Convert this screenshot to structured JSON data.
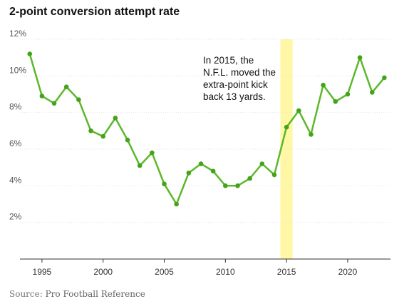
{
  "title": "2-point conversion attempt rate",
  "source": {
    "label": "Source:",
    "text": "Pro Football Reference"
  },
  "colors": {
    "line": "#5cb82a",
    "dot": "#45a31a",
    "highlight": "#fff7a6",
    "grid": "#e6e6e6",
    "axis": "#333333"
  },
  "chart_data": {
    "type": "line",
    "title": "2-point conversion attempt rate",
    "xlabel": "",
    "ylabel": "",
    "xlim": [
      1993.2,
      2023.5
    ],
    "ylim": [
      0,
      12
    ],
    "grid": true,
    "y_ticks": [
      2,
      4,
      6,
      8,
      10,
      12
    ],
    "y_tick_labels": [
      "2%",
      "4%",
      "6%",
      "8%",
      "10%",
      "12%"
    ],
    "x_ticks": [
      1995,
      2000,
      2005,
      2010,
      2015,
      2020
    ],
    "x_tick_labels": [
      "1995",
      "2000",
      "2005",
      "2010",
      "2015",
      "2020"
    ],
    "highlight_span": [
      2014.5,
      2015.5
    ],
    "annotation": {
      "lines": [
        "In 2015, the",
        "N.F.L. moved the",
        "extra-point kick",
        "back 13 yards."
      ]
    },
    "series": [
      {
        "x": [
          1994,
          1995,
          1996,
          1997,
          1998,
          1999,
          2000,
          2001,
          2002,
          2003,
          2004,
          2005,
          2006,
          2007,
          2008,
          2009,
          2010,
          2011,
          2012,
          2013,
          2014,
          2015,
          2016,
          2017,
          2018,
          2019,
          2020,
          2021,
          2022,
          2023
        ],
        "values": [
          11.2,
          8.9,
          8.5,
          9.4,
          8.7,
          7.0,
          6.7,
          7.7,
          6.5,
          5.1,
          5.8,
          4.1,
          3.0,
          4.7,
          5.2,
          4.8,
          4.0,
          4.0,
          4.4,
          5.2,
          4.6,
          7.2,
          8.1,
          6.8,
          9.5,
          8.6,
          9.0,
          11.0,
          9.1,
          9.9
        ]
      }
    ]
  }
}
